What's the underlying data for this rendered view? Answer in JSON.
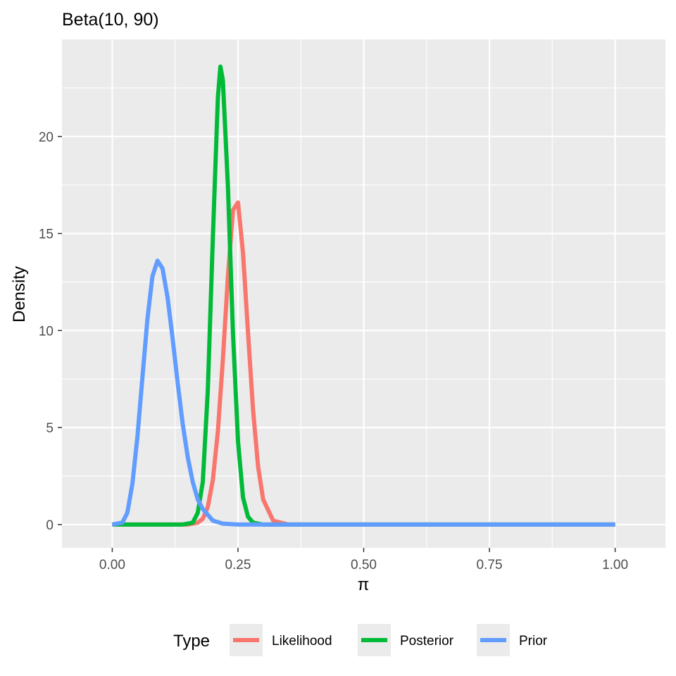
{
  "chart_data": {
    "type": "line",
    "title": "Beta(10, 90)",
    "xlabel": "π",
    "ylabel": "Density",
    "xlim": [
      -0.1,
      1.1
    ],
    "ylim": [
      -1.2,
      25.0
    ],
    "x_ticks": [
      0.0,
      0.25,
      0.5,
      0.75,
      1.0
    ],
    "x_tick_labels": [
      "0.00",
      "0.25",
      "0.50",
      "0.75",
      "1.00"
    ],
    "y_ticks": [
      0,
      5,
      10,
      15,
      20
    ],
    "y_tick_labels": [
      "0",
      "5",
      "10",
      "15",
      "20"
    ],
    "grid": true,
    "legend": {
      "title": "Type",
      "placement": "bottom",
      "entries": [
        "Likelihood",
        "Posterior",
        "Prior"
      ]
    },
    "series": [
      {
        "name": "Likelihood",
        "color": "#F8766D",
        "x": [
          0.0,
          0.15,
          0.17,
          0.18,
          0.19,
          0.2,
          0.21,
          0.22,
          0.23,
          0.24,
          0.25,
          0.26,
          0.27,
          0.28,
          0.29,
          0.3,
          0.32,
          0.35,
          1.0
        ],
        "y": [
          0.0,
          0.0,
          0.1,
          0.3,
          0.9,
          2.3,
          4.8,
          8.5,
          12.8,
          16.2,
          16.6,
          14.0,
          9.9,
          5.9,
          3.0,
          1.3,
          0.2,
          0.0,
          0.0
        ]
      },
      {
        "name": "Posterior",
        "color": "#00BA38",
        "x": [
          0.0,
          0.14,
          0.16,
          0.17,
          0.18,
          0.19,
          0.2,
          0.21,
          0.215,
          0.22,
          0.23,
          0.24,
          0.25,
          0.26,
          0.27,
          0.28,
          0.3,
          1.0
        ],
        "y": [
          0.0,
          0.0,
          0.1,
          0.6,
          2.2,
          6.9,
          14.8,
          22.0,
          23.6,
          22.9,
          17.4,
          9.9,
          4.3,
          1.4,
          0.4,
          0.1,
          0.0,
          0.0
        ]
      },
      {
        "name": "Prior",
        "color": "#619CFF",
        "x": [
          0.0,
          0.02,
          0.03,
          0.04,
          0.05,
          0.06,
          0.07,
          0.08,
          0.09,
          0.1,
          0.11,
          0.12,
          0.13,
          0.14,
          0.15,
          0.16,
          0.17,
          0.18,
          0.2,
          0.22,
          0.25,
          0.3,
          1.0
        ],
        "y": [
          0.0,
          0.1,
          0.6,
          2.1,
          4.5,
          7.6,
          10.6,
          12.8,
          13.6,
          13.2,
          11.7,
          9.6,
          7.3,
          5.2,
          3.5,
          2.2,
          1.3,
          0.8,
          0.2,
          0.05,
          0.0,
          0.0,
          0.0
        ]
      }
    ]
  }
}
